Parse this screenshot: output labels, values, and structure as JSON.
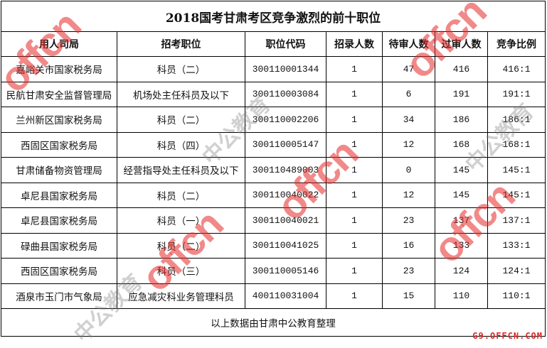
{
  "title": "2018国考甘肃考区竞争激烈的前十职位",
  "headers": [
    "用人司局",
    "招考职位",
    "职位代码",
    "招录人数",
    "待审人数",
    "过审人数",
    "竞争比例"
  ],
  "rows": [
    [
      "嘉峪关市国家税务局",
      "科员（二）",
      "300110001344",
      "1",
      "47",
      "416",
      "416:1"
    ],
    [
      "民航甘肃安全监督管理局",
      "机场处主任科员及以下",
      "300110003084",
      "1",
      "6",
      "191",
      "191:1"
    ],
    [
      "兰州新区国家税务局",
      "科员（二）",
      "300110002206",
      "1",
      "34",
      "186",
      "186:1"
    ],
    [
      "西固区国家税务局",
      "科员（四）",
      "300110005147",
      "1",
      "12",
      "168",
      "168:1"
    ],
    [
      "甘肃储备物资管理局",
      "经营指导处主任科员及以下",
      "300110489003",
      "1",
      "0",
      "145",
      "145:1"
    ],
    [
      "卓尼县国家税务局",
      "科员（二）",
      "300110040022",
      "1",
      "12",
      "145",
      "145:1"
    ],
    [
      "卓尼县国家税务局",
      "科员（一）",
      "300110040021",
      "1",
      "23",
      "137",
      "137:1"
    ],
    [
      "碌曲县国家税务局",
      "科员（二）",
      "300110041025",
      "1",
      "16",
      "133",
      "133:1"
    ],
    [
      "西固区国家税务局",
      "科员（三）",
      "300110005146",
      "1",
      "23",
      "124",
      "124:1"
    ],
    [
      "酒泉市玉门市气象局",
      "应急减灾科业务管理科员",
      "400110031004",
      "1",
      "15",
      "110",
      "110:1"
    ]
  ],
  "footer": "以上数据由甘肃中公教育整理",
  "watermark": {
    "en": "offcn",
    "cn": "中公教育",
    "site": "G9.OFFCN.COM"
  }
}
